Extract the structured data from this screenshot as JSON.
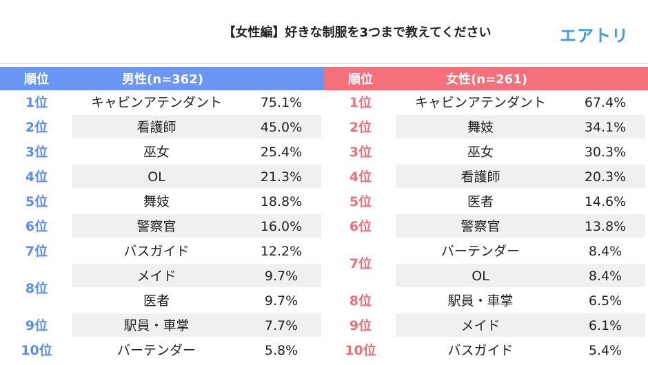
{
  "title": "【女性編】好きな制服を3つまで教えてください",
  "logo": "エアトリ",
  "colors": {
    "male_header": "#6a97f6",
    "female_header": "#f5707a",
    "male_rank": "#5b8df5",
    "female_rank": "#f0707a",
    "shade": "#f0f0f0"
  },
  "male": {
    "rank_header": "順位",
    "group_header": "男性(n=362)",
    "ranks": [
      {
        "label": "1位",
        "span": 1
      },
      {
        "label": "2位",
        "span": 1
      },
      {
        "label": "3位",
        "span": 1
      },
      {
        "label": "4位",
        "span": 1
      },
      {
        "label": "5位",
        "span": 1
      },
      {
        "label": "6位",
        "span": 1
      },
      {
        "label": "7位",
        "span": 1
      },
      {
        "label": "8位",
        "span": 2
      },
      {
        "label": "9位",
        "span": 1
      },
      {
        "label": "10位",
        "span": 1
      }
    ],
    "rows": [
      {
        "item": "キャビンアテンダント",
        "pct": "75.1%"
      },
      {
        "item": "看護師",
        "pct": "45.0%"
      },
      {
        "item": "巫女",
        "pct": "25.4%"
      },
      {
        "item": "OL",
        "pct": "21.3%"
      },
      {
        "item": "舞妓",
        "pct": "18.8%"
      },
      {
        "item": "警察官",
        "pct": "16.0%"
      },
      {
        "item": "バスガイド",
        "pct": "12.2%"
      },
      {
        "item": "メイド",
        "pct": "9.7%"
      },
      {
        "item": "医者",
        "pct": "9.7%"
      },
      {
        "item": "駅員・車掌",
        "pct": "7.7%"
      },
      {
        "item": "バーテンダー",
        "pct": "5.8%"
      }
    ]
  },
  "female": {
    "rank_header": "順位",
    "group_header": "女性(n=261)",
    "ranks": [
      {
        "label": "1位",
        "span": 1
      },
      {
        "label": "2位",
        "span": 1
      },
      {
        "label": "3位",
        "span": 1
      },
      {
        "label": "4位",
        "span": 1
      },
      {
        "label": "5位",
        "span": 1
      },
      {
        "label": "6位",
        "span": 1
      },
      {
        "label": "7位",
        "span": 2
      },
      {
        "label": "8位",
        "span": 1
      },
      {
        "label": "9位",
        "span": 1
      },
      {
        "label": "10位",
        "span": 1
      }
    ],
    "rows": [
      {
        "item": "キャビンアテンダント",
        "pct": "67.4%"
      },
      {
        "item": "舞妓",
        "pct": "34.1%"
      },
      {
        "item": "巫女",
        "pct": "30.3%"
      },
      {
        "item": "看護師",
        "pct": "20.3%"
      },
      {
        "item": "医者",
        "pct": "14.6%"
      },
      {
        "item": "警察官",
        "pct": "13.8%"
      },
      {
        "item": "バーテンダー",
        "pct": "8.4%"
      },
      {
        "item": "OL",
        "pct": "8.4%"
      },
      {
        "item": "駅員・車掌",
        "pct": "6.5%"
      },
      {
        "item": "メイド",
        "pct": "6.1%"
      },
      {
        "item": "バスガイド",
        "pct": "5.4%"
      }
    ]
  }
}
